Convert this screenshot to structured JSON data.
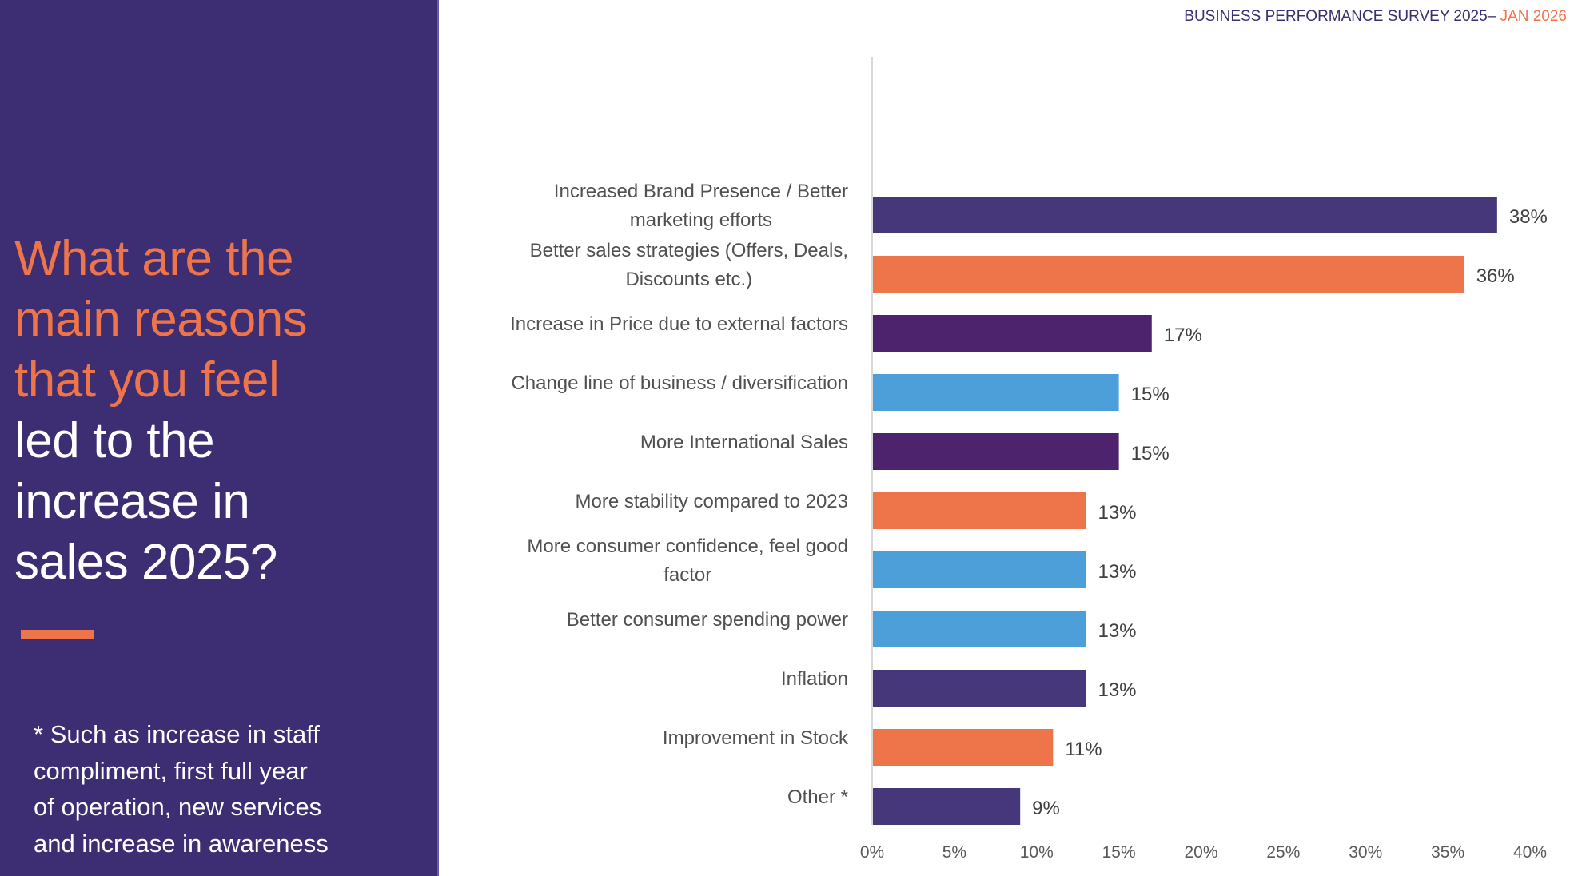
{
  "header": {
    "title": "BUSINESS PERFORMANCE SURVEY 2025– ",
    "date": "JAN 2026"
  },
  "sidebar": {
    "question_lines_highlight": [
      "What are the",
      "main reasons",
      "that you feel"
    ],
    "question_lines_plain": [
      "led to the",
      "increase in",
      "sales 2025?"
    ],
    "footnote_lines": [
      "* Such as increase in staff",
      "compliment, first full year",
      "of operation, new services",
      "and increase in awareness"
    ]
  },
  "colors": {
    "panel": "#3d2d72",
    "accent_orange": "#ee7549",
    "purple": "#46367a",
    "dark_purple": "#4e236e",
    "blue": "#4d9fda",
    "axis": "#d9d9d9"
  },
  "chart_data": {
    "type": "bar",
    "orientation": "horizontal",
    "title": "",
    "xlabel": "",
    "ylabel": "",
    "xlim": [
      0,
      40
    ],
    "x_ticks": [
      0,
      5,
      10,
      15,
      20,
      25,
      30,
      35,
      40
    ],
    "x_tick_labels": [
      "0%",
      "5%",
      "10%",
      "15%",
      "20%",
      "25%",
      "30%",
      "35%",
      "40%"
    ],
    "grid": false,
    "legend": "none",
    "categories": [
      [
        "Increased Brand Presence / Better",
        "marketing efforts"
      ],
      [
        "Better sales strategies (Offers, Deals,",
        "Discounts etc.)"
      ],
      [
        "Increase in Price due to external factors"
      ],
      [
        "Change line of business / diversification"
      ],
      [
        "More International Sales"
      ],
      [
        "More stability compared to 2023"
      ],
      [
        "More consumer confidence, feel good",
        "factor"
      ],
      [
        "Better consumer spending power"
      ],
      [
        "Inflation"
      ],
      [
        "Improvement in Stock"
      ],
      [
        "Other *"
      ]
    ],
    "values": [
      38,
      36,
      17,
      15,
      15,
      13,
      13,
      13,
      13,
      11,
      9
    ],
    "value_labels": [
      "38%",
      "36%",
      "17%",
      "15%",
      "15%",
      "13%",
      "13%",
      "13%",
      "13%",
      "11%",
      "9%"
    ],
    "bar_colors": [
      "#46367a",
      "#ee7549",
      "#4e236e",
      "#4d9fda",
      "#4e236e",
      "#ee7549",
      "#4d9fda",
      "#4d9fda",
      "#46367a",
      "#ee7549",
      "#46367a"
    ]
  }
}
